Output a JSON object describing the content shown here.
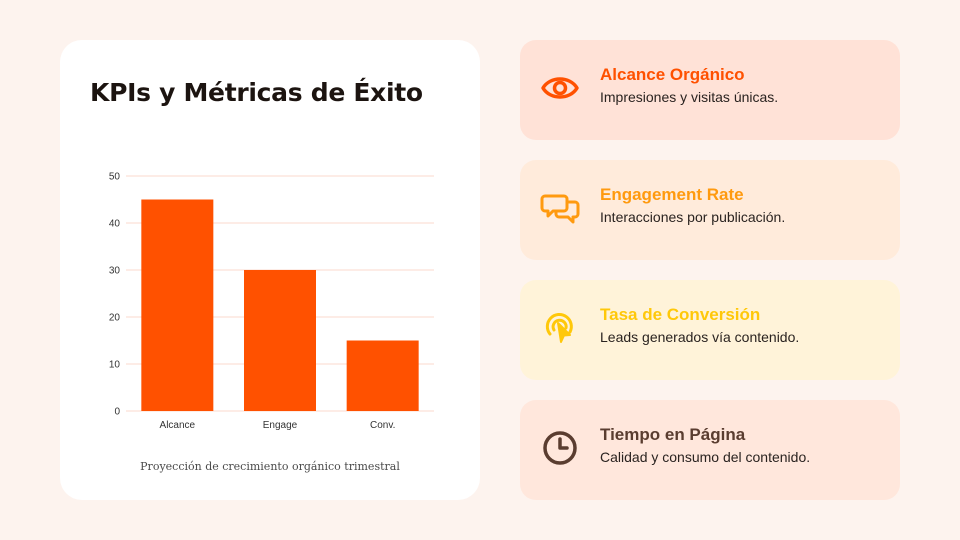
{
  "title": "KPIs y Métricas de Éxito",
  "caption": "Proyección de crecimiento orgánico trimestral",
  "colors": {
    "bar": "#ff5100",
    "grid": "#fbd9cc",
    "accent_orange": "#ff5100",
    "accent_amber": "#ff9a0f",
    "accent_yellow": "#ffc80a",
    "accent_brown": "#5a3d30"
  },
  "chart_data": {
    "type": "bar",
    "categories": [
      "Alcance",
      "Engage",
      "Conv."
    ],
    "values": [
      45,
      30,
      15
    ],
    "ylim": [
      0,
      50
    ],
    "yticks": [
      0,
      10,
      20,
      30,
      40,
      50
    ],
    "grid": true,
    "title": "",
    "xlabel": "",
    "ylabel": ""
  },
  "kpis": [
    {
      "title": "Alcance Orgánico",
      "desc": "Impresiones y visitas únicas.",
      "icon": "eye-icon",
      "color": "#ff5100",
      "bg": "#ffe2d7"
    },
    {
      "title": "Engagement Rate",
      "desc": "Interacciones por publicación.",
      "icon": "chat-bubbles-icon",
      "color": "#ff9a0f",
      "bg": "#ffebdb"
    },
    {
      "title": "Tasa de Conversión",
      "desc": "Leads generados vía contenido.",
      "icon": "pointer-click-icon",
      "color": "#ffc80a",
      "bg": "#fff3d9"
    },
    {
      "title": "Tiempo en Página",
      "desc": "Calidad y consumo del contenido.",
      "icon": "clock-icon",
      "color": "#5a3d30",
      "bg": "#ffe7dc"
    }
  ]
}
